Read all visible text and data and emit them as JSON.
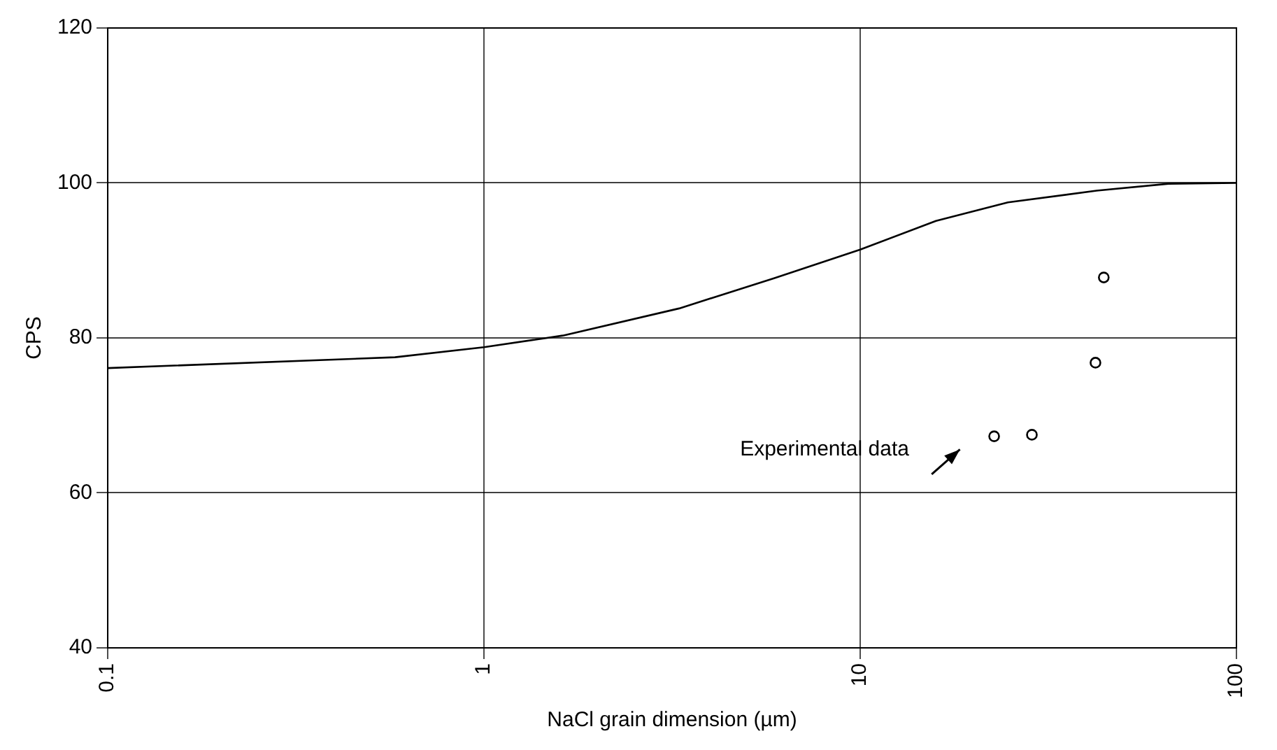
{
  "chart_data": {
    "type": "line",
    "xlabel": "NaCl grain dimension (µm)",
    "ylabel": "CPS",
    "log": "x",
    "xlim": [
      0.1,
      100
    ],
    "ylim": [
      40,
      120
    ],
    "xticks": [
      0.1,
      1,
      10,
      100
    ],
    "yticks": [
      40,
      60,
      80,
      100,
      120
    ],
    "grid": true,
    "legend": false,
    "series": [
      {
        "type": "line",
        "color": "#000000",
        "marker": "none",
        "line_style": "solid",
        "x": [
          0.1,
          0.58,
          1,
          1.62,
          3.3,
          5.9,
          10,
          15.9,
          24.7,
          42.5,
          66,
          100
        ],
        "values": [
          76.1,
          77.5,
          78.8,
          80.3,
          83.8,
          87.7,
          91.4,
          95.1,
          97.5,
          99.0,
          99.9,
          100
        ]
      },
      {
        "type": "scatter",
        "color": "#000000",
        "marker": "circle",
        "x": [
          22.7,
          28.6,
          42.2,
          44.4
        ],
        "values": [
          67.3,
          67.5,
          76.8,
          87.8
        ]
      }
    ],
    "annotations": [
      "Experimental data"
    ]
  }
}
